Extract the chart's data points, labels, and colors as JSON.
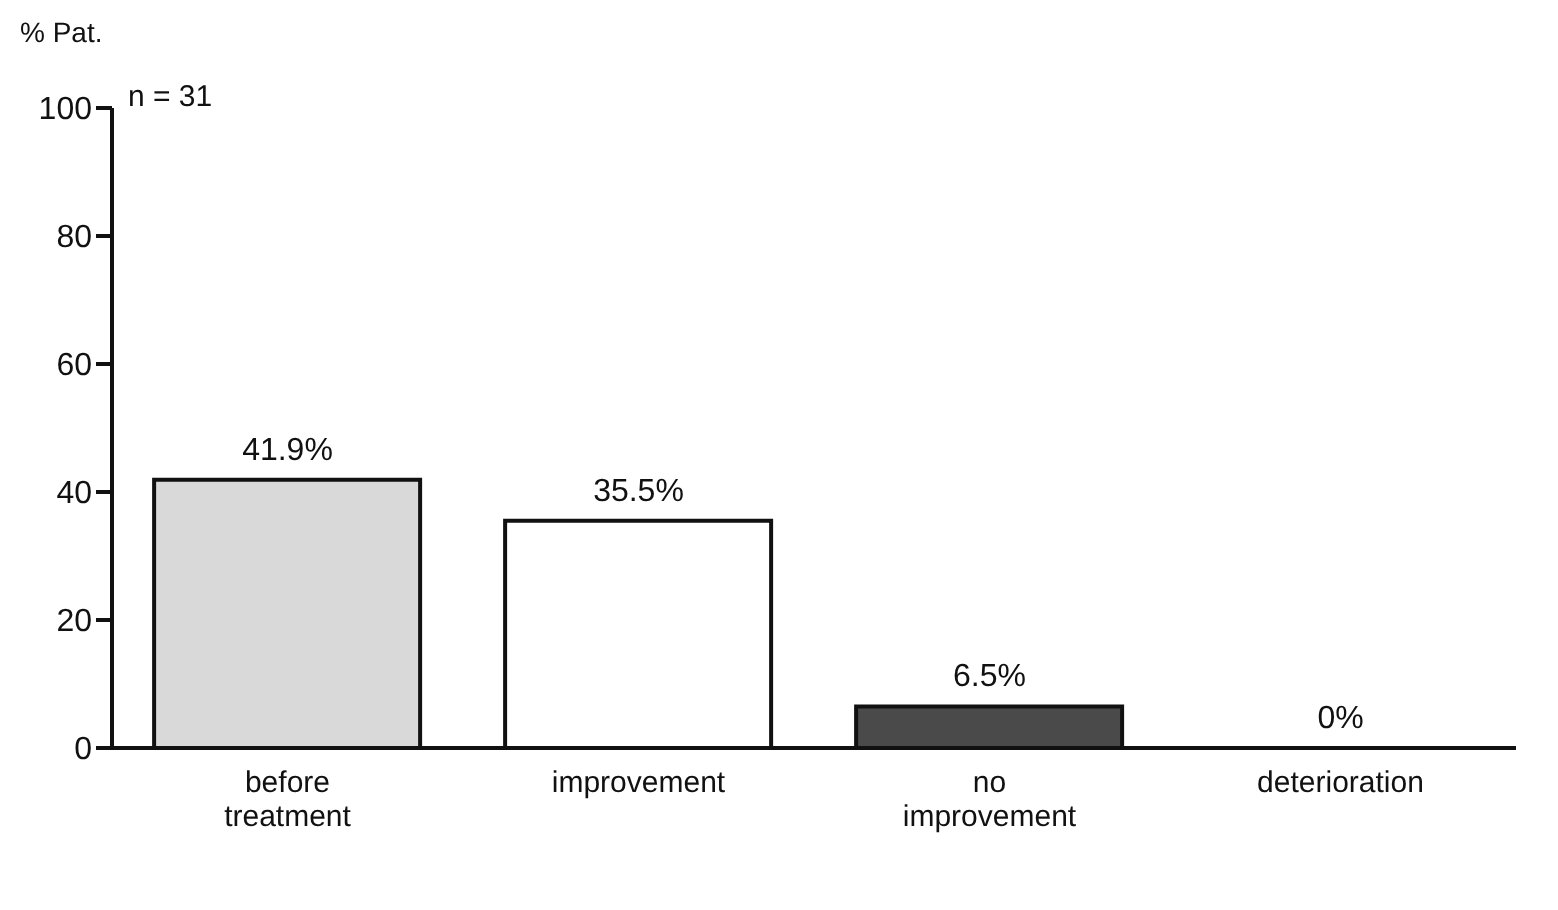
{
  "chart_data": {
    "type": "bar",
    "ylabel": "% Pat.",
    "annotations": [
      "n = 31"
    ],
    "categories": [
      "before treatment",
      "improvement",
      "no improvement",
      "deterioration"
    ],
    "values": [
      41.9,
      35.5,
      6.5,
      0
    ],
    "colors": [
      "#d9d9d9",
      "#ffffff",
      "#4a4a4a",
      "#ffffff"
    ],
    "value_labels": [
      "41.9%",
      "35.5%",
      "6.5%",
      "0%"
    ],
    "ylim": [
      0,
      100
    ],
    "yticks": [
      0,
      20,
      40,
      60,
      80,
      100
    ],
    "grid": false,
    "legend": false
  }
}
